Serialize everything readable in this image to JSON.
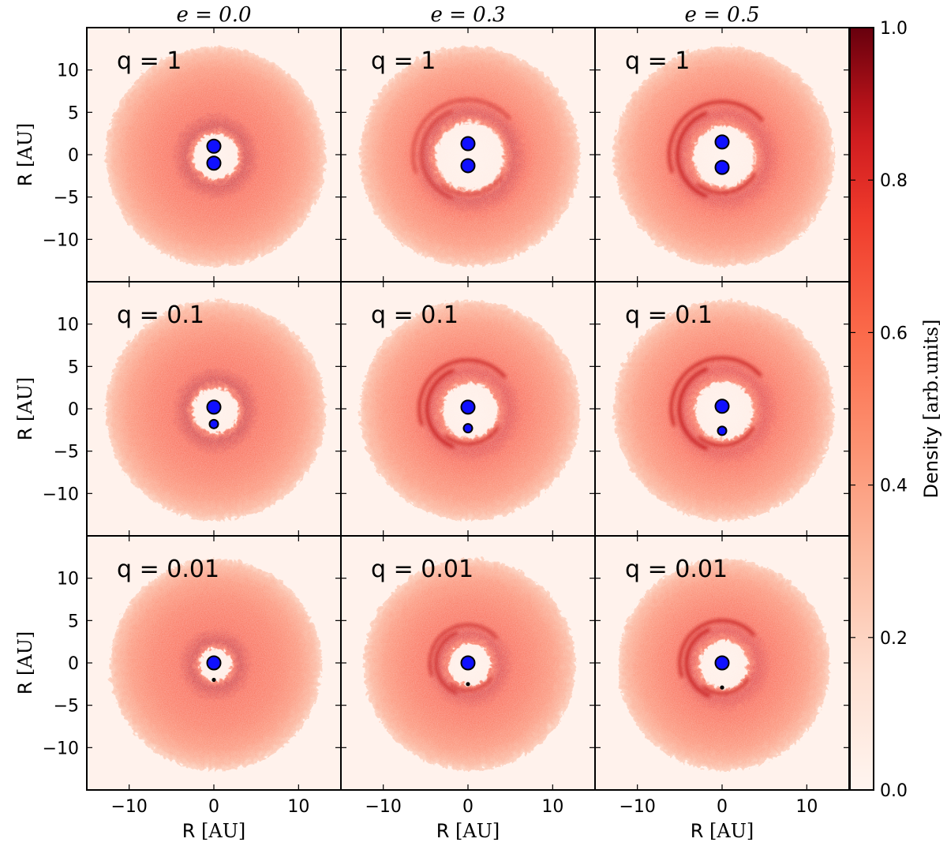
{
  "chart_data": {
    "type": "heatmap",
    "description_of_layout": "3x3 grid of 2D density maps (rows: mass ratio q, columns: eccentricity e) with shared colorbar",
    "column_titles": [
      "e = 0.0",
      "e = 0.3",
      "e = 0.5"
    ],
    "column_e_values": [
      0.0,
      0.3,
      0.5
    ],
    "row_labels": [
      "q = 1",
      "q = 0.1",
      "q = 0.01"
    ],
    "row_q_values": [
      1,
      0.1,
      0.01
    ],
    "xlabel": "R [AU]",
    "ylabel": "R [AU]",
    "xlim": [
      -15,
      15
    ],
    "ylim": [
      -15,
      15
    ],
    "xticks": [
      -10,
      0,
      10
    ],
    "yticks": [
      -10,
      -5,
      0,
      5,
      10
    ],
    "colorbar": {
      "label": "Density [arb.units]",
      "range": [
        0.0,
        1.0
      ],
      "ticks": [
        0.0,
        0.2,
        0.4,
        0.6,
        0.8,
        1.0
      ],
      "colormap": "Reds",
      "color_low": "#fff5f0",
      "color_high": "#67000d"
    },
    "panels": [
      {
        "row": 0,
        "col": 0,
        "label": "q = 1",
        "e": 0.0,
        "outer_radius": 13.0,
        "cavity_radius": 2.8,
        "ring_radius": 3.6,
        "spiral": 0.0,
        "stars": [
          {
            "x": 0,
            "y": 1.0,
            "size": "large"
          },
          {
            "x": 0,
            "y": -1.0,
            "size": "large"
          }
        ]
      },
      {
        "row": 0,
        "col": 1,
        "label": "q = 1",
        "e": 0.3,
        "outer_radius": 13.0,
        "cavity_radius": 4.2,
        "ring_radius": 5.2,
        "spiral": 0.3,
        "stars": [
          {
            "x": 0,
            "y": 1.3,
            "size": "large"
          },
          {
            "x": 0,
            "y": -1.3,
            "size": "large"
          }
        ]
      },
      {
        "row": 0,
        "col": 2,
        "label": "q = 1",
        "e": 0.5,
        "outer_radius": 13.0,
        "cavity_radius": 3.8,
        "ring_radius": 5.0,
        "spiral": 0.8,
        "stars": [
          {
            "x": 0,
            "y": 1.5,
            "size": "large"
          },
          {
            "x": 0,
            "y": -1.5,
            "size": "large"
          }
        ]
      },
      {
        "row": 1,
        "col": 0,
        "label": "q = 0.1",
        "e": 0.0,
        "outer_radius": 13.0,
        "cavity_radius": 2.8,
        "ring_radius": 3.6,
        "spiral": 0.0,
        "stars": [
          {
            "x": 0,
            "y": 0.2,
            "size": "large"
          },
          {
            "x": 0,
            "y": -1.8,
            "size": "medium"
          }
        ]
      },
      {
        "row": 1,
        "col": 1,
        "label": "q = 0.1",
        "e": 0.3,
        "outer_radius": 13.0,
        "cavity_radius": 3.4,
        "ring_radius": 4.6,
        "spiral": 0.8,
        "stars": [
          {
            "x": 0,
            "y": 0.2,
            "size": "large"
          },
          {
            "x": 0,
            "y": -2.3,
            "size": "medium"
          }
        ]
      },
      {
        "row": 1,
        "col": 2,
        "label": "q = 0.1",
        "e": 0.5,
        "outer_radius": 13.0,
        "cavity_radius": 3.6,
        "ring_radius": 4.8,
        "spiral": 0.9,
        "stars": [
          {
            "x": 0,
            "y": 0.3,
            "size": "large"
          },
          {
            "x": 0,
            "y": -2.6,
            "size": "medium"
          }
        ]
      },
      {
        "row": 2,
        "col": 0,
        "label": "q = 0.01",
        "e": 0.0,
        "outer_radius": 12.5,
        "cavity_radius": 2.0,
        "ring_radius": 2.8,
        "spiral": 0.0,
        "stars": [
          {
            "x": 0,
            "y": 0.0,
            "size": "large"
          },
          {
            "x": 0,
            "y": -2.0,
            "size": "tiny"
          }
        ]
      },
      {
        "row": 2,
        "col": 1,
        "label": "q = 0.01",
        "e": 0.3,
        "outer_radius": 12.5,
        "cavity_radius": 2.6,
        "ring_radius": 3.6,
        "spiral": 0.5,
        "stars": [
          {
            "x": 0,
            "y": 0.0,
            "size": "large"
          },
          {
            "x": 0,
            "y": -2.5,
            "size": "tiny"
          }
        ]
      },
      {
        "row": 2,
        "col": 2,
        "label": "q = 0.01",
        "e": 0.5,
        "outer_radius": 12.5,
        "cavity_radius": 3.0,
        "ring_radius": 4.0,
        "spiral": 0.8,
        "stars": [
          {
            "x": 0,
            "y": 0.0,
            "size": "large"
          },
          {
            "x": 0,
            "y": -2.9,
            "size": "tiny"
          }
        ]
      }
    ],
    "star_color": "#1010ff",
    "star_edge_color": "#000000"
  }
}
